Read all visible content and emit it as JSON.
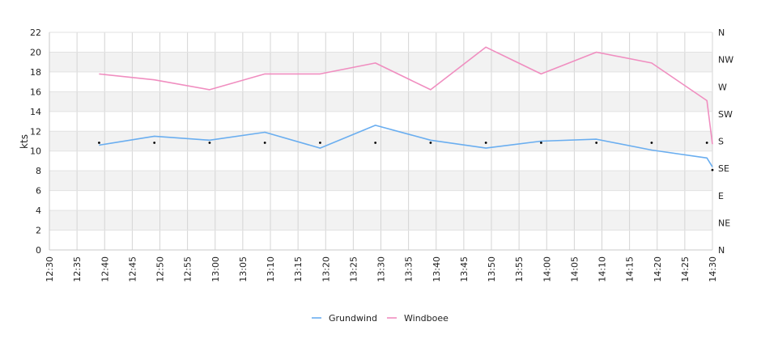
{
  "chart_data": {
    "type": "line",
    "ylabel": "kts",
    "ylim": [
      0,
      22
    ],
    "y_ticks": [
      "0",
      "2",
      "4",
      "6",
      "8",
      "10",
      "12",
      "14",
      "16",
      "18",
      "20",
      "22"
    ],
    "x_ticks": [
      "12:30",
      "12:35",
      "12:40",
      "12:45",
      "12:50",
      "12:55",
      "13:00",
      "13:05",
      "13:10",
      "13:15",
      "13:20",
      "13:25",
      "13:30",
      "13:35",
      "13:40",
      "13:45",
      "13:50",
      "13:55",
      "14:00",
      "14:05",
      "14:10",
      "14:15",
      "14:20",
      "14:25",
      "14:30"
    ],
    "right_axis": {
      "ticks": [
        "N",
        "NE",
        "E",
        "SE",
        "S",
        "SW",
        "W",
        "NW",
        "N"
      ]
    },
    "grid": true,
    "legend_position": "bottom-center",
    "series": [
      {
        "name": "Grundwind",
        "color": "#6aaef0",
        "x": [
          "12:39",
          "12:49",
          "12:59",
          "13:09",
          "13:19",
          "13:29",
          "13:39",
          "13:49",
          "13:59",
          "14:09",
          "14:19",
          "14:29",
          "14:30"
        ],
        "values": [
          10.6,
          11.5,
          11.1,
          11.9,
          10.3,
          12.6,
          11.1,
          10.3,
          11.0,
          11.2,
          10.1,
          9.3,
          8.4
        ]
      },
      {
        "name": "Windboee",
        "color": "#f08ec0",
        "x": [
          "12:39",
          "12:49",
          "12:59",
          "13:09",
          "13:19",
          "13:29",
          "13:39",
          "13:49",
          "13:59",
          "14:09",
          "14:19",
          "14:29",
          "14:30"
        ],
        "values": [
          17.8,
          17.2,
          16.2,
          17.8,
          17.8,
          18.9,
          16.2,
          20.5,
          17.8,
          20.0,
          18.9,
          15.1,
          10.7
        ]
      }
    ],
    "direction_markers": {
      "x": [
        "12:39",
        "12:49",
        "12:59",
        "13:09",
        "13:19",
        "13:29",
        "13:39",
        "13:49",
        "13:59",
        "14:09",
        "14:19",
        "14:29",
        "14:30"
      ],
      "compass": [
        "S",
        "S",
        "S",
        "S",
        "S",
        "S",
        "S",
        "S",
        "S",
        "S",
        "S",
        "S",
        "SE"
      ]
    }
  }
}
